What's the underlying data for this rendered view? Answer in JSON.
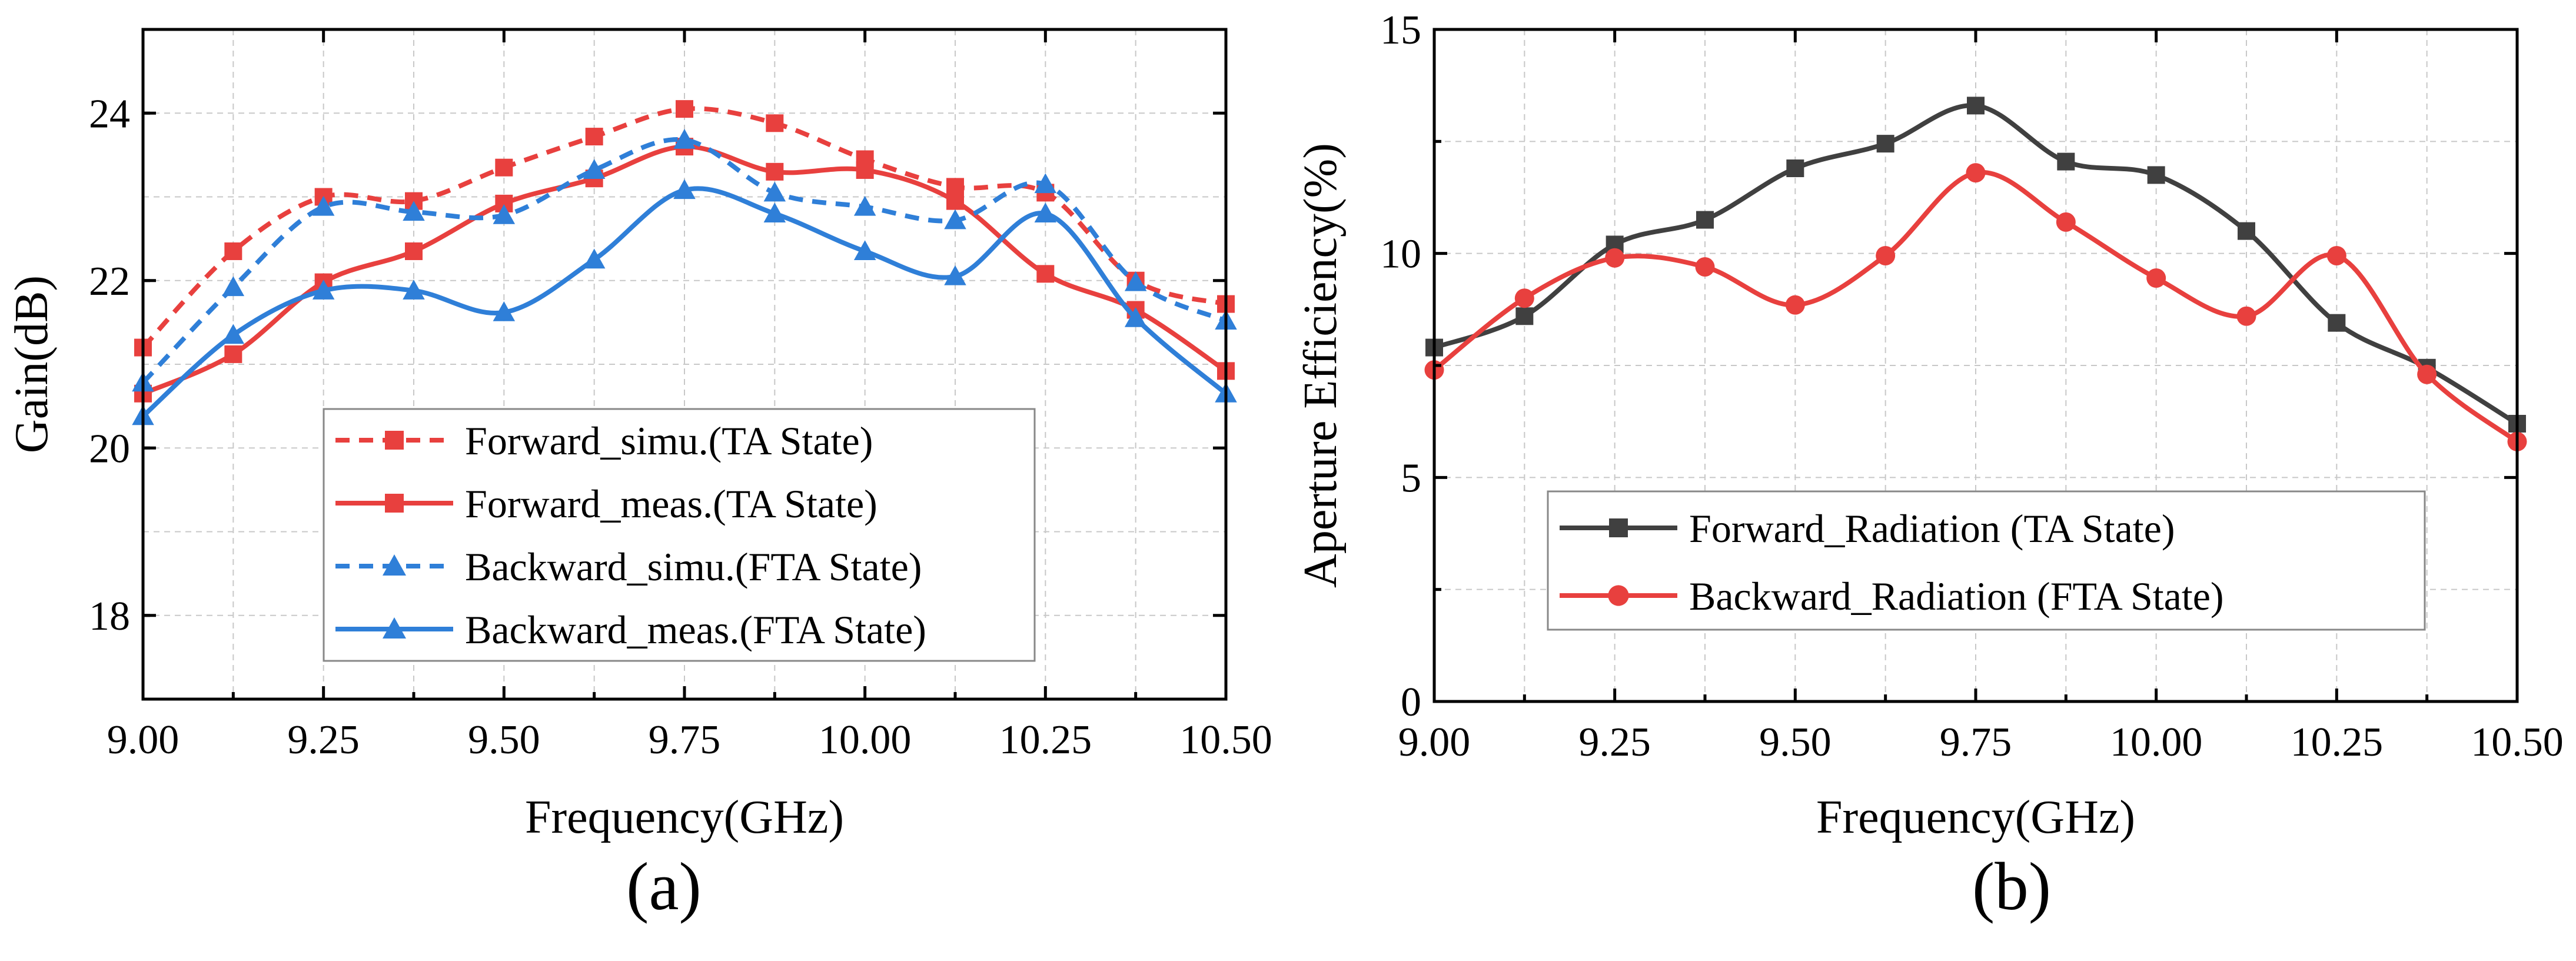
{
  "chart_data": [
    {
      "type": "line",
      "caption": "(a)",
      "xlabel": "Frequency(GHz)",
      "ylabel": "Gain(dB)",
      "xlim": [
        9.0,
        10.5
      ],
      "ylim": [
        17.0,
        25.0
      ],
      "xticks": [
        9.0,
        9.25,
        9.5,
        9.75,
        10.0,
        10.25,
        10.5
      ],
      "xtick_labels": [
        "9.00",
        "9.25",
        "9.50",
        "9.75",
        "10.00",
        "10.25",
        "10.50"
      ],
      "yticks": [
        18,
        20,
        22,
        24
      ],
      "ytick_labels": [
        "18",
        "20",
        "22",
        "24"
      ],
      "grid": true,
      "legend_position": "bottom-right",
      "x": [
        9.0,
        9.125,
        9.25,
        9.375,
        9.5,
        9.625,
        9.75,
        9.875,
        10.0,
        10.125,
        10.25,
        10.375,
        10.5
      ],
      "series": [
        {
          "name": "Forward_simu.(TA State)",
          "color": "#e8403e",
          "dash": true,
          "marker": "square",
          "values": [
            21.2,
            22.35,
            23.0,
            22.95,
            23.35,
            23.72,
            24.05,
            23.88,
            23.45,
            23.12,
            23.05,
            22.0,
            21.72
          ]
        },
        {
          "name": "Forward_meas.(TA State)",
          "color": "#e8403e",
          "dash": false,
          "marker": "square",
          "values": [
            20.65,
            21.12,
            21.98,
            22.35,
            22.92,
            23.22,
            23.6,
            23.3,
            23.32,
            22.95,
            22.08,
            21.65,
            20.92
          ]
        },
        {
          "name": "Backward_simu.(FTA State)",
          "color": "#2f7fd8",
          "dash": true,
          "marker": "triangle",
          "values": [
            20.78,
            21.92,
            22.88,
            22.82,
            22.78,
            23.32,
            23.68,
            23.05,
            22.88,
            22.72,
            23.15,
            21.98,
            21.52
          ]
        },
        {
          "name": "Backward_meas.(FTA State)",
          "color": "#2f7fd8",
          "dash": false,
          "marker": "triangle",
          "values": [
            20.38,
            21.35,
            21.88,
            21.88,
            21.62,
            22.25,
            23.08,
            22.8,
            22.35,
            22.05,
            22.8,
            21.55,
            20.65
          ]
        }
      ]
    },
    {
      "type": "line",
      "caption": "(b)",
      "xlabel": "Frequency(GHz)",
      "ylabel": "Aperture Efficiency(%)",
      "xlim": [
        9.0,
        10.5
      ],
      "ylim": [
        0,
        15
      ],
      "xticks": [
        9.0,
        9.25,
        9.5,
        9.75,
        10.0,
        10.25,
        10.5
      ],
      "xtick_labels": [
        "9.00",
        "9.25",
        "9.50",
        "9.75",
        "10.00",
        "10.25",
        "10.50"
      ],
      "yticks": [
        0,
        5,
        10,
        15
      ],
      "ytick_labels": [
        "0",
        "5",
        "10",
        "15"
      ],
      "grid": true,
      "legend_position": "bottom-center",
      "x": [
        9.0,
        9.125,
        9.25,
        9.375,
        9.5,
        9.625,
        9.75,
        9.875,
        10.0,
        10.125,
        10.25,
        10.375,
        10.5
      ],
      "series": [
        {
          "name": "Forward_Radiation (TA State)",
          "color": "#404040",
          "dash": false,
          "marker": "square",
          "values": [
            7.9,
            8.6,
            10.2,
            10.75,
            11.9,
            12.45,
            13.3,
            12.05,
            11.75,
            10.5,
            8.45,
            7.45,
            6.2
          ]
        },
        {
          "name": "Backward_Radiation (FTA State)",
          "color": "#e8403e",
          "dash": false,
          "marker": "circle",
          "values": [
            7.4,
            9.0,
            9.9,
            9.7,
            8.85,
            9.95,
            11.8,
            10.7,
            9.45,
            8.6,
            9.95,
            7.3,
            5.8
          ]
        }
      ]
    }
  ]
}
